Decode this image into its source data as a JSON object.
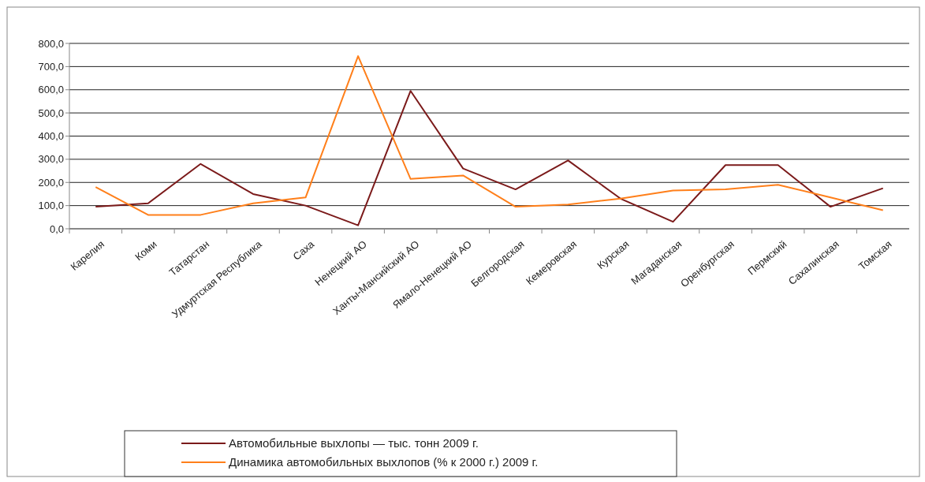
{
  "chart_data": {
    "type": "line",
    "categories": [
      "Карелия",
      "Коми",
      "Татарстан",
      "Удмуртская Республика",
      "Саха",
      "Ненецкий АО",
      "Ханты-Мансийский АО",
      "Ямало-Ненецкий АО",
      "Белгородская",
      "Кемеровская",
      "Курская",
      "Магаданская",
      "Оренбургская",
      "Пермский",
      "Сахалинская",
      "Томская"
    ],
    "series": [
      {
        "name": "Автомобильные выхлопы — тыс. тонн 2009 г.",
        "color": "#7b1a1a",
        "values": [
          95,
          110,
          280,
          150,
          100,
          15,
          595,
          260,
          170,
          295,
          130,
          30,
          275,
          275,
          95,
          175
        ]
      },
      {
        "name": "Динамика автомобильных выхлопов (% к 2000 г.) 2009 г.",
        "color": "#ff7f1a",
        "values": [
          180,
          60,
          60,
          110,
          135,
          745,
          215,
          230,
          95,
          105,
          130,
          165,
          170,
          190,
          135,
          80
        ]
      }
    ],
    "ylim": [
      0,
      800
    ],
    "yticks": [
      {
        "value": 0,
        "label": "0,0"
      },
      {
        "value": 100,
        "label": "100,0"
      },
      {
        "value": 200,
        "label": "200,0"
      },
      {
        "value": 300,
        "label": "300,0"
      },
      {
        "value": 400,
        "label": "400,0"
      },
      {
        "value": 500,
        "label": "500,0"
      },
      {
        "value": 600,
        "label": "600,0"
      },
      {
        "value": 700,
        "label": "700,0"
      },
      {
        "value": 800,
        "label": "800,0"
      }
    ],
    "grid": "y",
    "legend": "bottom"
  }
}
